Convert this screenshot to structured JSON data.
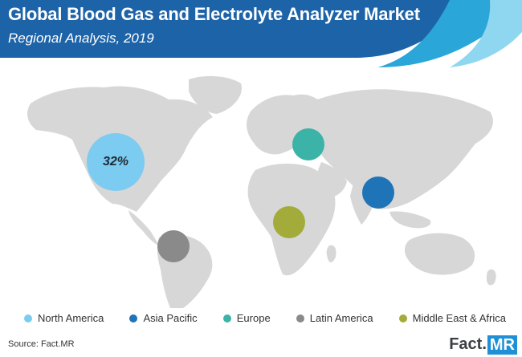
{
  "header": {
    "title": "Global Blood Gas and Electrolyte Analyzer Market",
    "subtitle": "Regional Analysis, 2019"
  },
  "colors": {
    "header_dark": "#1d63a8",
    "wave_mid": "#2aa6d8",
    "wave_light": "#8fd7f0",
    "land": "#d7d7d7"
  },
  "regions": [
    {
      "name": "North America",
      "color": "#7ccbf1",
      "value_label": "32%"
    },
    {
      "name": "Asia Pacific",
      "color": "#1f73b7",
      "value_label": ""
    },
    {
      "name": "Europe",
      "color": "#3bb3a6",
      "value_label": ""
    },
    {
      "name": "Latin America",
      "color": "#8a8a8a",
      "value_label": ""
    },
    {
      "name": "Middle East & Africa",
      "color": "#a3ac3a",
      "value_label": ""
    }
  ],
  "source": "Source: Fact.MR",
  "brand": {
    "name": "Fact",
    "dot": ".",
    "suffix": "MR"
  }
}
